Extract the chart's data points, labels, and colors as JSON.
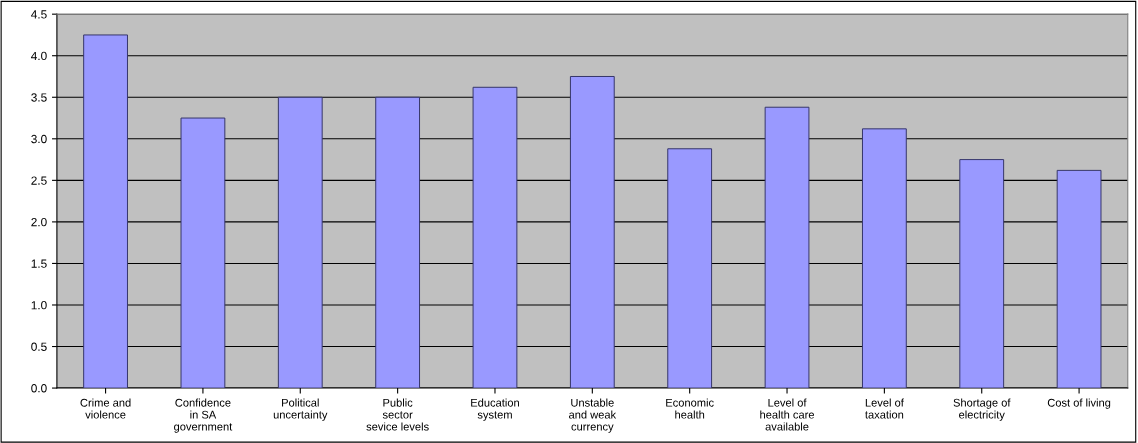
{
  "chart_data": {
    "type": "bar",
    "categories": [
      "Crime and\nviolence",
      "Confidence\nin SA\ngovernment",
      "Political\nuncertainty",
      "Public\nsector\nsevice levels",
      "Education\nsystem",
      "Unstable\nand weak\ncurrency",
      "Economic\nhealth",
      "Level of\nhealth care\navailable",
      "Level of\ntaxation",
      "Shortage of\nelectricity",
      "Cost of living"
    ],
    "values": [
      4.25,
      3.25,
      3.5,
      3.5,
      3.62,
      3.75,
      2.88,
      3.38,
      3.12,
      2.75,
      2.62
    ],
    "color": "#9999ff",
    "ylim": [
      0,
      4.5
    ],
    "yticks": [
      {
        "value": 0,
        "label": "0.0"
      },
      {
        "value": 0.5,
        "label": "0.5"
      },
      {
        "value": 1,
        "label": "1.0"
      },
      {
        "value": 1.5,
        "label": "1.5"
      },
      {
        "value": 2,
        "label": "2.0"
      },
      {
        "value": 2.5,
        "label": "2.5"
      },
      {
        "value": 3,
        "label": "3.0"
      },
      {
        "value": 3.5,
        "label": "3.5"
      },
      {
        "value": 4,
        "label": "4.0"
      },
      {
        "value": 4.5,
        "label": "4.5"
      }
    ],
    "grid": "y"
  }
}
